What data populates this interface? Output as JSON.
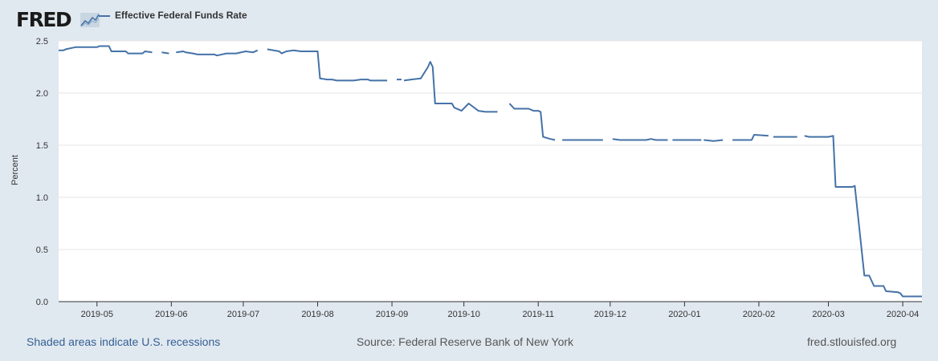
{
  "header": {
    "logo_text": "FRED",
    "logo_icon": "trend-line-chart-icon",
    "legend_label": "Effective Federal Funds Rate"
  },
  "footer": {
    "recession_note": "Shaded areas indicate U.S. recessions",
    "source": "Source: Federal Reserve Bank of New York",
    "site": "fred.stlouisfed.org"
  },
  "colors": {
    "series": "#4572a7",
    "background": "#e1e9f0",
    "plot_bg": "#ffffff",
    "grid": "#e6e6e6"
  },
  "chart_data": {
    "type": "line",
    "title": "",
    "xlabel": "",
    "ylabel": "Percent",
    "ylim": [
      0,
      2.5
    ],
    "yticks": [
      "0.0",
      "0.5",
      "1.0",
      "1.5",
      "2.0",
      "2.5"
    ],
    "xticks": [
      "2019-05",
      "2019-06",
      "2019-07",
      "2019-08",
      "2019-09",
      "2019-10",
      "2019-11",
      "2019-12",
      "2020-01",
      "2020-02",
      "2020-03",
      "2020-04"
    ],
    "xrange": [
      "2019-04-15",
      "2020-04-09"
    ],
    "grid": true,
    "legend_position": "top-left",
    "series": [
      {
        "name": "Effective Federal Funds Rate",
        "segments": [
          [
            [
              "2019-04-15",
              2.41
            ],
            [
              "2019-04-17",
              2.41
            ],
            [
              "2019-04-18",
              2.42
            ],
            [
              "2019-04-22",
              2.44
            ],
            [
              "2019-05-01",
              2.44
            ],
            [
              "2019-05-02",
              2.45
            ],
            [
              "2019-05-06",
              2.45
            ],
            [
              "2019-05-07",
              2.4
            ],
            [
              "2019-05-13",
              2.4
            ],
            [
              "2019-05-14",
              2.38
            ],
            [
              "2019-05-20",
              2.38
            ],
            [
              "2019-05-21",
              2.4
            ],
            [
              "2019-05-24",
              2.39
            ]
          ],
          [
            [
              "2019-05-28",
              2.39
            ],
            [
              "2019-05-31",
              2.38
            ]
          ],
          [
            [
              "2019-06-03",
              2.39
            ],
            [
              "2019-06-06",
              2.4
            ],
            [
              "2019-06-07",
              2.39
            ],
            [
              "2019-06-10",
              2.38
            ],
            [
              "2019-06-12",
              2.37
            ],
            [
              "2019-06-19",
              2.37
            ],
            [
              "2019-06-20",
              2.36
            ],
            [
              "2019-06-24",
              2.38
            ],
            [
              "2019-06-28",
              2.38
            ],
            [
              "2019-07-02",
              2.4
            ],
            [
              "2019-07-05",
              2.39
            ],
            [
              "2019-07-07",
              2.41
            ]
          ],
          [
            [
              "2019-07-11",
              2.42
            ],
            [
              "2019-07-16",
              2.4
            ],
            [
              "2019-07-17",
              2.38
            ],
            [
              "2019-07-19",
              2.4
            ],
            [
              "2019-07-22",
              2.41
            ],
            [
              "2019-07-25",
              2.4
            ],
            [
              "2019-07-31",
              2.4
            ],
            [
              "2019-08-01",
              2.4
            ],
            [
              "2019-08-02",
              2.14
            ],
            [
              "2019-08-05",
              2.13
            ],
            [
              "2019-08-07",
              2.13
            ],
            [
              "2019-08-09",
              2.12
            ],
            [
              "2019-08-16",
              2.12
            ],
            [
              "2019-08-19",
              2.13
            ],
            [
              "2019-08-22",
              2.13
            ],
            [
              "2019-08-23",
              2.12
            ],
            [
              "2019-08-30",
              2.12
            ]
          ],
          [
            [
              "2019-09-03",
              2.13
            ],
            [
              "2019-09-05",
              2.13
            ]
          ],
          [
            [
              "2019-09-06",
              2.12
            ],
            [
              "2019-09-09",
              2.13
            ],
            [
              "2019-09-13",
              2.14
            ],
            [
              "2019-09-16",
              2.25
            ],
            [
              "2019-09-17",
              2.3
            ],
            [
              "2019-09-18",
              2.25
            ],
            [
              "2019-09-19",
              1.9
            ],
            [
              "2019-09-23",
              1.9
            ],
            [
              "2019-09-26",
              1.9
            ],
            [
              "2019-09-27",
              1.86
            ],
            [
              "2019-09-30",
              1.83
            ],
            [
              "2019-10-03",
              1.9
            ],
            [
              "2019-10-07",
              1.83
            ],
            [
              "2019-10-10",
              1.82
            ],
            [
              "2019-10-15",
              1.82
            ]
          ],
          [
            [
              "2019-10-20",
              1.9
            ],
            [
              "2019-10-22",
              1.85
            ],
            [
              "2019-10-28",
              1.85
            ],
            [
              "2019-10-30",
              1.83
            ],
            [
              "2019-11-01",
              1.83
            ],
            [
              "2019-11-02",
              1.82
            ],
            [
              "2019-11-03",
              1.58
            ],
            [
              "2019-11-06",
              1.56
            ],
            [
              "2019-11-08",
              1.55
            ]
          ],
          [
            [
              "2019-11-11",
              1.55
            ],
            [
              "2019-11-28",
              1.55
            ]
          ],
          [
            [
              "2019-12-02",
              1.56
            ],
            [
              "2019-12-05",
              1.55
            ],
            [
              "2019-12-16",
              1.55
            ],
            [
              "2019-12-18",
              1.56
            ],
            [
              "2019-12-20",
              1.55
            ],
            [
              "2019-12-25",
              1.55
            ]
          ],
          [
            [
              "2019-12-27",
              1.55
            ],
            [
              "2020-01-08",
              1.55
            ]
          ],
          [
            [
              "2020-01-09",
              1.55
            ],
            [
              "2020-01-13",
              1.54
            ],
            [
              "2020-01-17",
              1.55
            ]
          ],
          [
            [
              "2020-01-21",
              1.55
            ],
            [
              "2020-01-29",
              1.55
            ],
            [
              "2020-01-30",
              1.6
            ],
            [
              "2020-02-05",
              1.59
            ]
          ],
          [
            [
              "2020-02-07",
              1.58
            ],
            [
              "2020-02-17",
              1.58
            ]
          ],
          [
            [
              "2020-02-20",
              1.59
            ],
            [
              "2020-02-22",
              1.58
            ],
            [
              "2020-03-01",
              1.58
            ],
            [
              "2020-03-03",
              1.59
            ],
            [
              "2020-03-04",
              1.1
            ],
            [
              "2020-03-11",
              1.1
            ],
            [
              "2020-03-12",
              1.11
            ],
            [
              "2020-03-16",
              0.25
            ],
            [
              "2020-03-18",
              0.25
            ],
            [
              "2020-03-20",
              0.15
            ],
            [
              "2020-03-24",
              0.15
            ],
            [
              "2020-03-25",
              0.1
            ],
            [
              "2020-03-30",
              0.09
            ],
            [
              "2020-03-31",
              0.08
            ],
            [
              "2020-04-01",
              0.05
            ],
            [
              "2020-04-09",
              0.05
            ]
          ]
        ]
      }
    ]
  }
}
